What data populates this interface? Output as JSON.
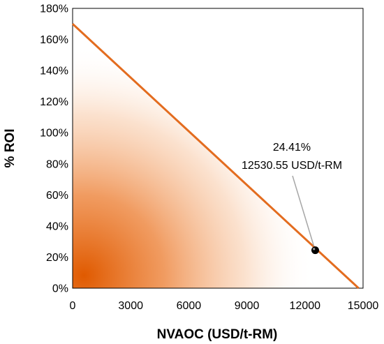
{
  "chart_data": {
    "type": "line",
    "title": "",
    "xlabel": "NVAOC (USD/t-RM)",
    "ylabel": "% ROI",
    "xlim": [
      0,
      15000
    ],
    "ylim": [
      0,
      180
    ],
    "x_ticks": [
      0,
      3000,
      6000,
      9000,
      12000,
      15000
    ],
    "x_tick_labels": [
      "0",
      "3000",
      "6000",
      "9000",
      "12000",
      "15000"
    ],
    "y_ticks": [
      0,
      20,
      40,
      60,
      80,
      100,
      120,
      140,
      160,
      180
    ],
    "y_tick_labels": [
      "0%",
      "20%",
      "40%",
      "60%",
      "80%",
      "100%",
      "120%",
      "140%",
      "160%",
      "180%"
    ],
    "grid": false,
    "series": [
      {
        "x": [
          0,
          14770
        ],
        "y": [
          170,
          0
        ],
        "color": "#E36C1F"
      }
    ],
    "shaded_area": {
      "description_color": "#E05A00",
      "under_series": 0
    },
    "marker": {
      "x": 12530.55,
      "y": 24.41,
      "color": "#000000"
    },
    "annotation": {
      "line1": "24.41%",
      "line2": "12530.55 USD/t-RM",
      "leader_color": "#A6A6A6"
    }
  }
}
